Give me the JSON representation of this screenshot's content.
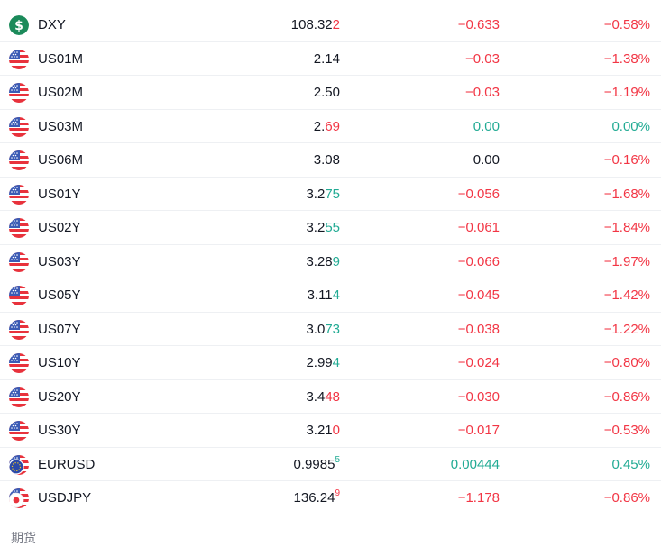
{
  "rows": [
    {
      "symbol": "DXY",
      "icon": "dollar-sign-icon",
      "last_main": "108.32",
      "last_tail": "2",
      "tail_dir": "down",
      "tail_sup": false,
      "change": "−0.633",
      "change_dir": "neg",
      "change_pct": "−0.58%",
      "pct_dir": "neg"
    },
    {
      "symbol": "US01M",
      "icon": "us-flag-icon",
      "last_main": "2.14",
      "last_tail": "",
      "tail_dir": "flat",
      "tail_sup": false,
      "change": "−0.03",
      "change_dir": "neg",
      "change_pct": "−1.38%",
      "pct_dir": "neg"
    },
    {
      "symbol": "US02M",
      "icon": "us-flag-icon",
      "last_main": "2.50",
      "last_tail": "",
      "tail_dir": "flat",
      "tail_sup": false,
      "change": "−0.03",
      "change_dir": "neg",
      "change_pct": "−1.19%",
      "pct_dir": "neg"
    },
    {
      "symbol": "US03M",
      "icon": "us-flag-icon",
      "last_main": "2.",
      "last_tail": "69",
      "tail_dir": "down",
      "tail_sup": false,
      "change": "0.00",
      "change_dir": "pos",
      "change_pct": "0.00%",
      "pct_dir": "pos"
    },
    {
      "symbol": "US06M",
      "icon": "us-flag-icon",
      "last_main": "3.08",
      "last_tail": "",
      "tail_dir": "flat",
      "tail_sup": false,
      "change": "0.00",
      "change_dir": "neu",
      "change_pct": "−0.16%",
      "pct_dir": "neg"
    },
    {
      "symbol": "US01Y",
      "icon": "us-flag-icon",
      "last_main": "3.2",
      "last_tail": "75",
      "tail_dir": "up",
      "tail_sup": false,
      "change": "−0.056",
      "change_dir": "neg",
      "change_pct": "−1.68%",
      "pct_dir": "neg"
    },
    {
      "symbol": "US02Y",
      "icon": "us-flag-icon",
      "last_main": "3.2",
      "last_tail": "55",
      "tail_dir": "up",
      "tail_sup": false,
      "change": "−0.061",
      "change_dir": "neg",
      "change_pct": "−1.84%",
      "pct_dir": "neg"
    },
    {
      "symbol": "US03Y",
      "icon": "us-flag-icon",
      "last_main": "3.28",
      "last_tail": "9",
      "tail_dir": "up",
      "tail_sup": false,
      "change": "−0.066",
      "change_dir": "neg",
      "change_pct": "−1.97%",
      "pct_dir": "neg"
    },
    {
      "symbol": "US05Y",
      "icon": "us-flag-icon",
      "last_main": "3.11",
      "last_tail": "4",
      "tail_dir": "up",
      "tail_sup": false,
      "change": "−0.045",
      "change_dir": "neg",
      "change_pct": "−1.42%",
      "pct_dir": "neg"
    },
    {
      "symbol": "US07Y",
      "icon": "us-flag-icon",
      "last_main": "3.0",
      "last_tail": "73",
      "tail_dir": "up",
      "tail_sup": false,
      "change": "−0.038",
      "change_dir": "neg",
      "change_pct": "−1.22%",
      "pct_dir": "neg"
    },
    {
      "symbol": "US10Y",
      "icon": "us-flag-icon",
      "last_main": "2.99",
      "last_tail": "4",
      "tail_dir": "up",
      "tail_sup": false,
      "change": "−0.024",
      "change_dir": "neg",
      "change_pct": "−0.80%",
      "pct_dir": "neg"
    },
    {
      "symbol": "US20Y",
      "icon": "us-flag-icon",
      "last_main": "3.4",
      "last_tail": "48",
      "tail_dir": "down",
      "tail_sup": false,
      "change": "−0.030",
      "change_dir": "neg",
      "change_pct": "−0.86%",
      "pct_dir": "neg"
    },
    {
      "symbol": "US30Y",
      "icon": "us-flag-icon",
      "last_main": "3.21",
      "last_tail": "0",
      "tail_dir": "down",
      "tail_sup": false,
      "change": "−0.017",
      "change_dir": "neg",
      "change_pct": "−0.53%",
      "pct_dir": "neg"
    },
    {
      "symbol": "EURUSD",
      "icon": "eu-us-flag-icon",
      "last_main": "0.9985",
      "last_tail": "5",
      "tail_dir": "up",
      "tail_sup": true,
      "change": "0.00444",
      "change_dir": "pos",
      "change_pct": "0.45%",
      "pct_dir": "pos"
    },
    {
      "symbol": "USDJPY",
      "icon": "us-jp-flag-icon",
      "last_main": "136.24",
      "last_tail": "9",
      "tail_dir": "down",
      "tail_sup": true,
      "change": "−1.178",
      "change_dir": "neg",
      "change_pct": "−0.86%",
      "pct_dir": "neg"
    }
  ],
  "section_label": "期货",
  "colors": {
    "up": "#22ab94",
    "down": "#f23645",
    "text": "#131722",
    "muted": "#787b86",
    "dxy_icon": "#1b8a5a"
  }
}
